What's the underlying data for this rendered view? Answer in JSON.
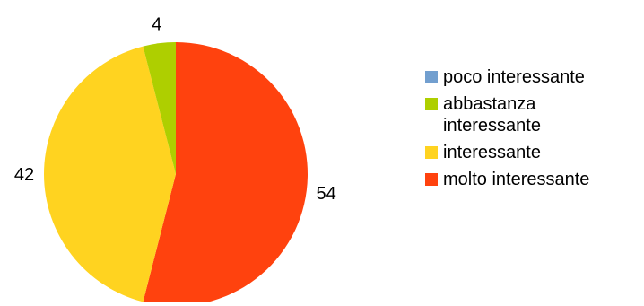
{
  "chart_data": {
    "type": "pie",
    "title": "",
    "start_angle_deg": 0,
    "direction": "clockwise",
    "slices": [
      {
        "label": "molto interessante",
        "value": 54,
        "color": "#ff420e"
      },
      {
        "label": "interessante",
        "value": 42,
        "color": "#ffd320"
      },
      {
        "label": "abbastanza interessante",
        "value": 4,
        "color": "#aecf00"
      },
      {
        "label": "poco interessante",
        "value": 0,
        "color": "#729fcf"
      }
    ],
    "data_labels": [
      "54",
      "42",
      "4"
    ],
    "legend": {
      "position": "right",
      "items": [
        {
          "label": "poco interessante",
          "color": "#729fcf"
        },
        {
          "label": "abbastanza interessante",
          "color": "#aecf00"
        },
        {
          "label": "interessante",
          "color": "#ffd320"
        },
        {
          "label": "molto interessante",
          "color": "#ff420e"
        }
      ]
    }
  }
}
